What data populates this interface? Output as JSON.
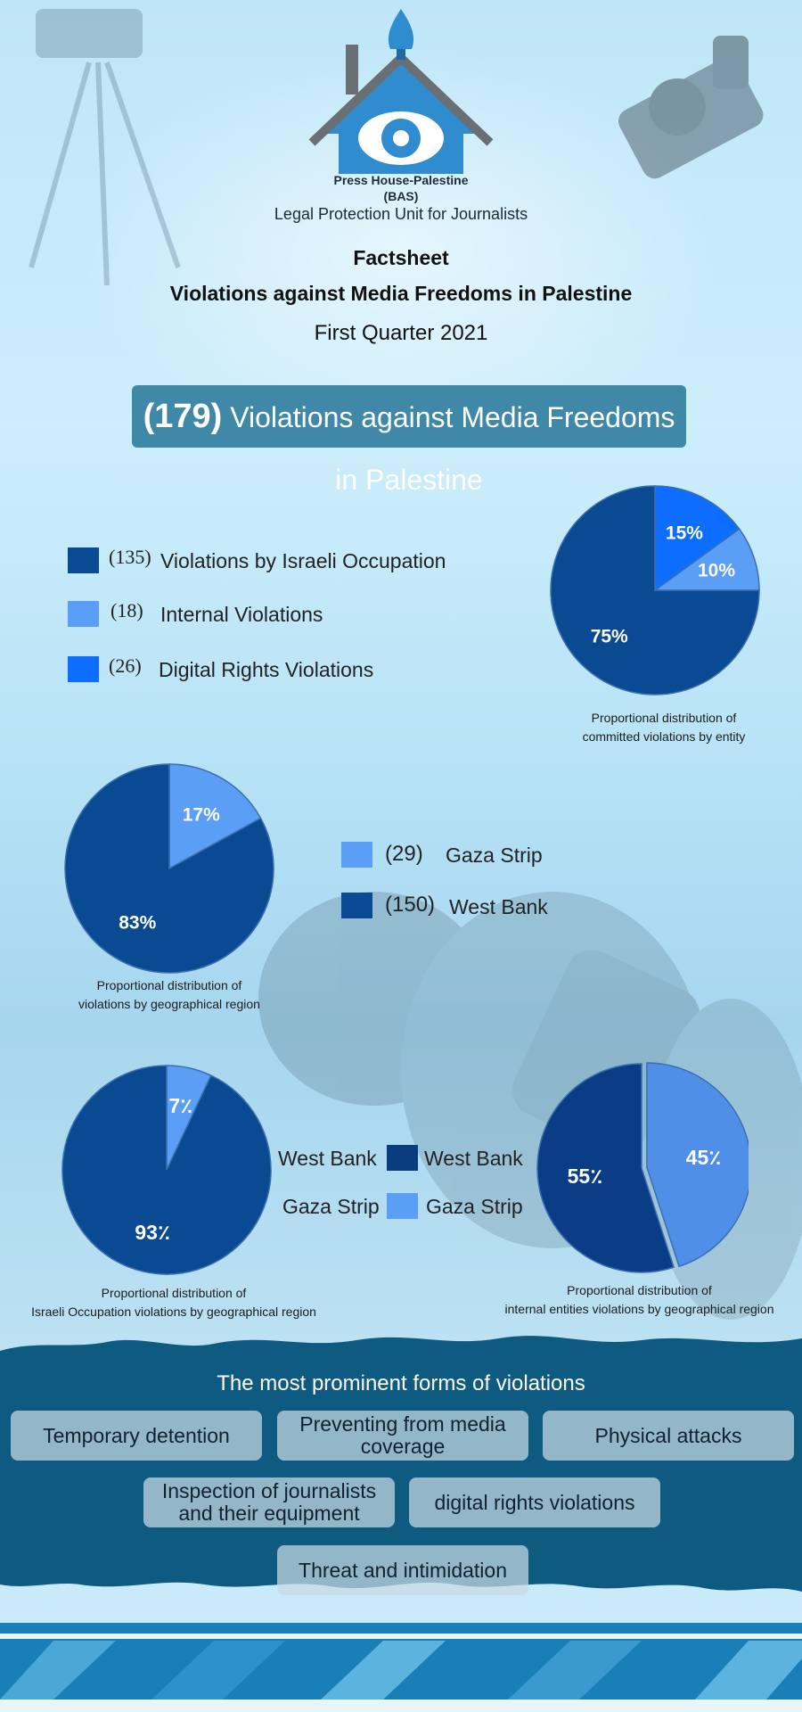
{
  "header": {
    "org_name": "Press House-Palestine",
    "org_abbr": "(BAS)",
    "unit": "Legal Protection Unit for Journalists",
    "title": "Factsheet",
    "subtitle": "Violations against Media Freedoms in Palestine",
    "period": "First Quarter 2021"
  },
  "banner": {
    "count": "(179)",
    "text": "Violations against Media Freedoms in Palestine"
  },
  "colors": {
    "israeli": "#0a4a92",
    "internal": "#5a9ef5",
    "digital": "#0c6dff",
    "west_bank": "#0a4a92",
    "gaza": "#5a9ef5",
    "bottom_band": "#0f5a80"
  },
  "legend_entity": [
    {
      "count": "(135)",
      "label": "Violations by Israeli Occupation"
    },
    {
      "count": "(18)",
      "label": "Internal Violations"
    },
    {
      "count": "(26)",
      "label": "Digital Rights Violations"
    }
  ],
  "legend_region": [
    {
      "count": "(29)",
      "label": "Gaza Strip"
    },
    {
      "count": "(150)",
      "label": "West Bank"
    }
  ],
  "legend_shared": {
    "left": [
      "West Bank",
      "Gaza Strip"
    ],
    "right": [
      "West Bank",
      "Gaza Strip"
    ]
  },
  "chart_data": [
    {
      "type": "pie",
      "title": "Proportional distribution of committed violations by entity",
      "title_lines": [
        "Proportional distribution of",
        "committed violations by entity"
      ],
      "categories": [
        "Digital Rights Violations",
        "Internal Violations",
        "Violations by Israeli Occupation"
      ],
      "values": [
        15,
        10,
        75
      ],
      "labels": [
        "15%",
        "10%",
        "75%"
      ]
    },
    {
      "type": "pie",
      "title": "Proportional distribution of violations by geographical region",
      "title_lines": [
        "Proportional distribution of",
        "violations by geographical region"
      ],
      "categories": [
        "Gaza Strip",
        "West Bank"
      ],
      "values": [
        17,
        83
      ],
      "labels": [
        "17%",
        "83%"
      ]
    },
    {
      "type": "pie",
      "title": "Proportional distribution of Israeli Occupation violations by geographical region",
      "title_lines": [
        "Proportional distribution of",
        "Israeli Occupation violations by geographical region"
      ],
      "categories": [
        "Gaza Strip",
        "West Bank"
      ],
      "values": [
        7,
        93
      ],
      "labels": [
        "7٪",
        "93٪"
      ]
    },
    {
      "type": "pie",
      "title": "Proportional distribution of internal entities violations by geographical region",
      "title_lines": [
        "Proportional distribution of",
        "internal entities violations by geographical region"
      ],
      "categories": [
        "Gaza Strip",
        "West Bank"
      ],
      "values": [
        45,
        55
      ],
      "labels": [
        "45٪",
        "55٪"
      ]
    }
  ],
  "forms": {
    "title": "The most prominent forms of violations",
    "items": [
      {
        "label": "Temporary detention"
      },
      {
        "label": "Preventing from media coverage"
      },
      {
        "label": "Physical attacks"
      },
      {
        "label": "Inspection of journalists\nand their equipment"
      },
      {
        "label": "digital rights  violations"
      },
      {
        "label": "Threat and intimidation"
      }
    ]
  }
}
